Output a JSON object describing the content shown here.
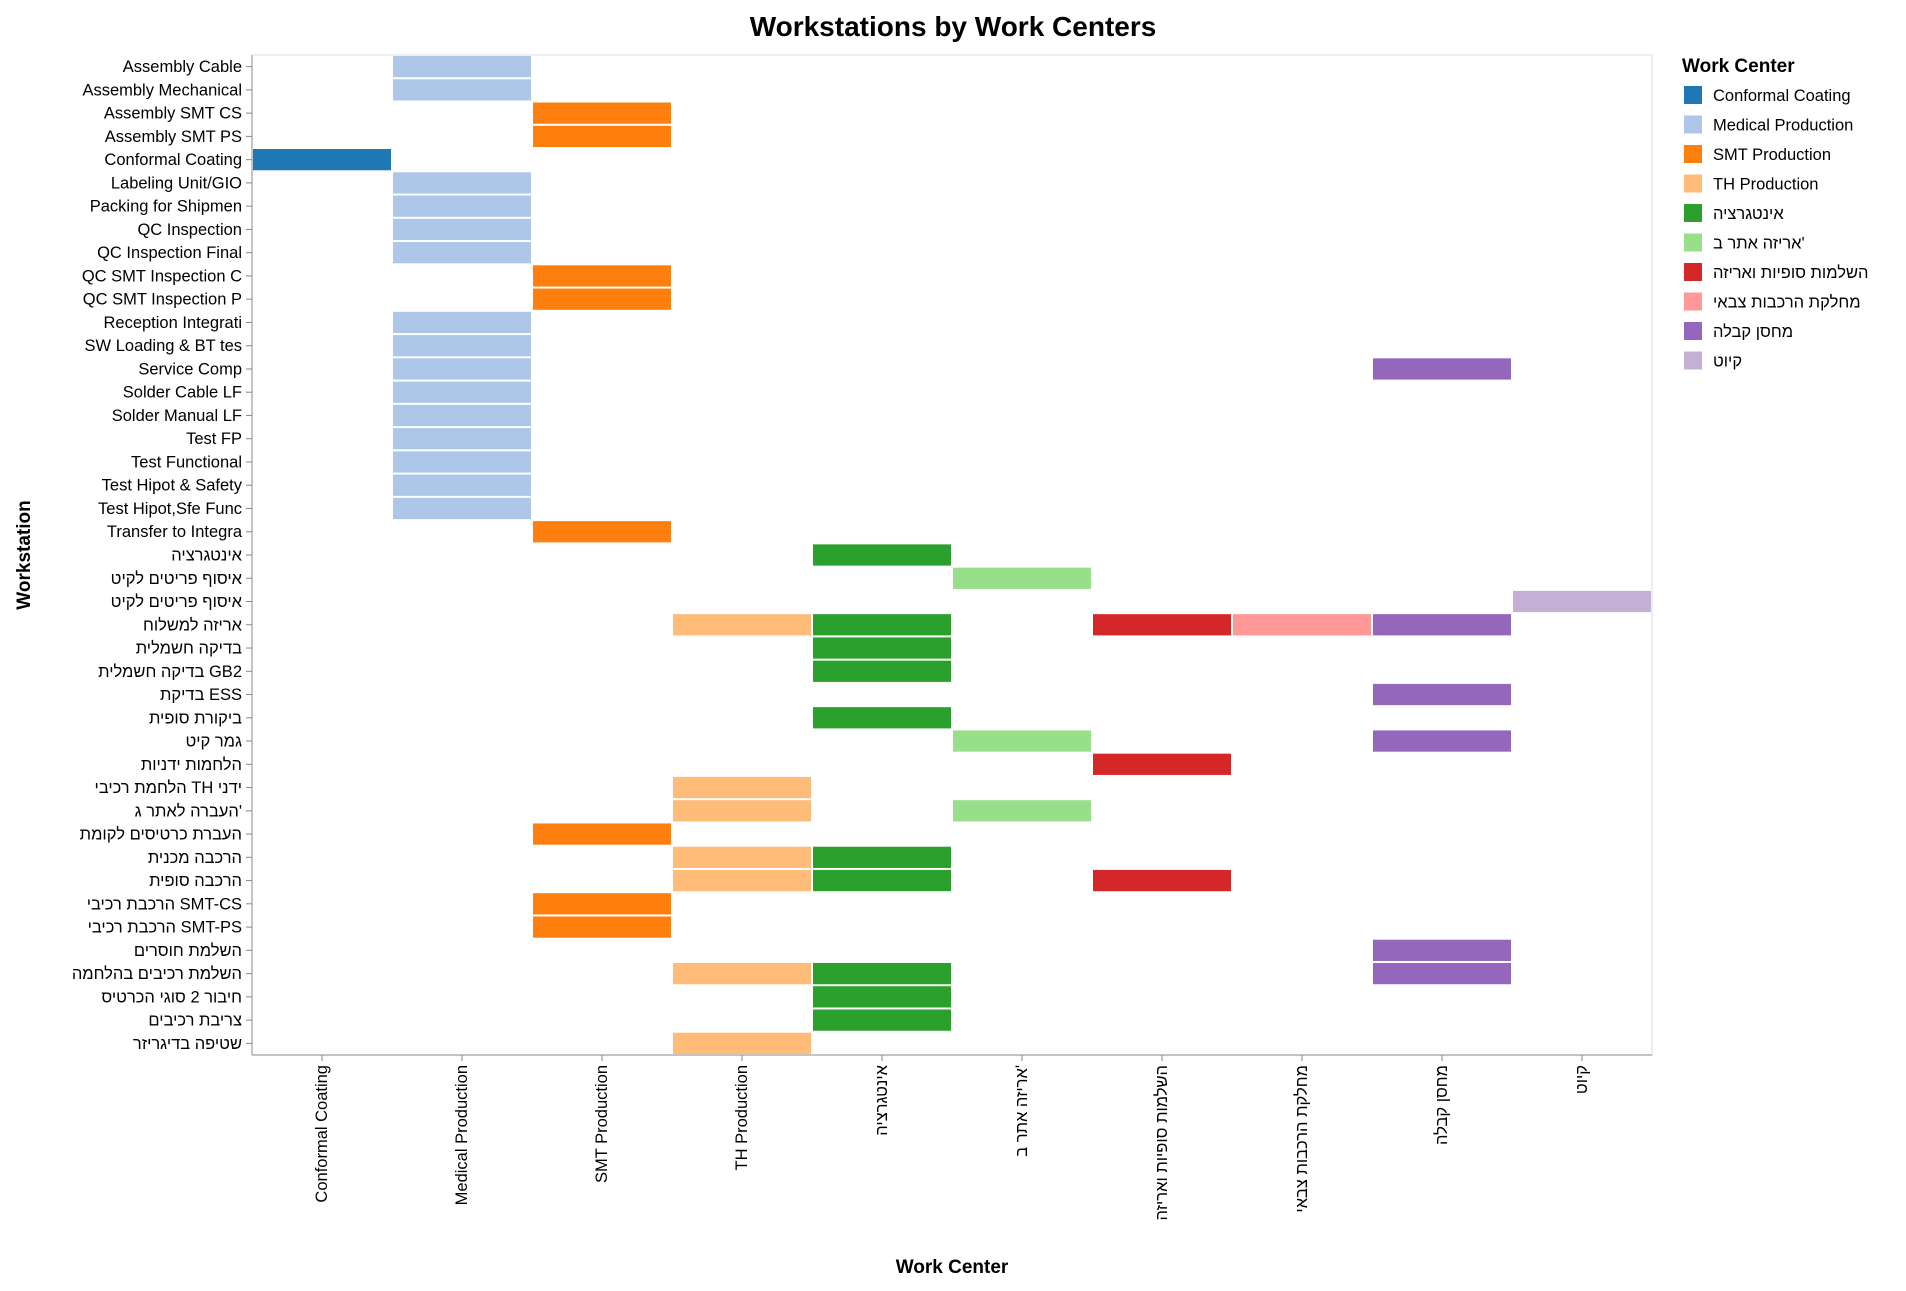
{
  "chart_data": {
    "type": "heatmap",
    "title": "Workstations by Work Centers",
    "xlabel": "Work Center",
    "ylabel": "Workstation",
    "grid": false,
    "legend_position": "right",
    "legend": {
      "title": "Work Center",
      "entries": [
        {
          "name": "Conformal Coating",
          "color": "#1f77b4"
        },
        {
          "name": "Medical Production",
          "color": "#aec7e8"
        },
        {
          "name": "SMT Production",
          "color": "#ff7f0e"
        },
        {
          "name": "TH Production",
          "color": "#ffbb78"
        },
        {
          "name": "אינטגרציה",
          "color": "#2ca02c"
        },
        {
          "name": "אריזה אתר ב'",
          "color": "#98df8a"
        },
        {
          "name": "השלמות סופיות ואריזה",
          "color": "#d62728"
        },
        {
          "name": "מחלקת הרכבות צבאי",
          "color": "#ff9896"
        },
        {
          "name": "מחסן קבלה",
          "color": "#9467bd"
        },
        {
          "name": "קיוט",
          "color": "#c5b0d5"
        }
      ]
    },
    "x_categories": [
      "Conformal Coating",
      "Medical Production",
      "SMT Production",
      "TH Production",
      "אינטגרציה",
      "אריזה אתר ב'",
      "השלמות סופיות ואריזה",
      "מחלקת הרכבות צבאי",
      "מחסן קבלה",
      "קיוט"
    ],
    "y_categories": [
      "Assembly Cable",
      "Assembly Mechanical",
      "Assembly SMT CS",
      "Assembly SMT PS",
      "Conformal Coating",
      "Labeling Unit/GIO",
      "Packing for Shipmen",
      "QC Inspection",
      "QC Inspection Final",
      "QC SMT Inspection C",
      "QC SMT Inspection P",
      "Reception Integrati",
      "SW Loading & BT tes",
      "Service Comp",
      "Solder Cable LF",
      "Solder Manual LF",
      "Test FP",
      "Test Functional",
      "Test Hipot & Safety",
      "Test Hipot,Sfe Func",
      "Transfer to Integra",
      "אינטגרציה",
      "איסוף פריטים לקיט",
      "איסוף פריטים לקיט ",
      "אריזה למשלוח",
      "בדיקה חשמלית",
      "בדיקה חשמלית GB2",
      "בדיקת ESS",
      "ביקורת סופית",
      "גמר קיט",
      "הלחמות ידניות",
      "הלחמת רכיבי TH ידני",
      "העברה לאתר ג'",
      "העברת כרטיסים לקומת",
      "הרכבה מכנית",
      "הרכבה סופית",
      "הרכבת רכיבי SMT-CS",
      "הרכבת רכיבי SMT-PS",
      "השלמת חוסרים",
      "השלמת רכיבים בהלחמה",
      "חיבור 2 סוגי הכרטיס",
      "צריבת רכיבים",
      "שטיפה בדיגריזר"
    ],
    "cells": [
      {
        "y": 0,
        "x": 1
      },
      {
        "y": 1,
        "x": 1
      },
      {
        "y": 2,
        "x": 2
      },
      {
        "y": 3,
        "x": 2
      },
      {
        "y": 4,
        "x": 0
      },
      {
        "y": 5,
        "x": 1
      },
      {
        "y": 6,
        "x": 1
      },
      {
        "y": 7,
        "x": 1
      },
      {
        "y": 8,
        "x": 1
      },
      {
        "y": 9,
        "x": 2
      },
      {
        "y": 10,
        "x": 2
      },
      {
        "y": 11,
        "x": 1
      },
      {
        "y": 12,
        "x": 1
      },
      {
        "y": 13,
        "x": 1
      },
      {
        "y": 13,
        "x": 8
      },
      {
        "y": 14,
        "x": 1
      },
      {
        "y": 15,
        "x": 1
      },
      {
        "y": 16,
        "x": 1
      },
      {
        "y": 17,
        "x": 1
      },
      {
        "y": 18,
        "x": 1
      },
      {
        "y": 19,
        "x": 1
      },
      {
        "y": 20,
        "x": 2
      },
      {
        "y": 21,
        "x": 4
      },
      {
        "y": 22,
        "x": 5
      },
      {
        "y": 23,
        "x": 9
      },
      {
        "y": 24,
        "x": 3
      },
      {
        "y": 24,
        "x": 4
      },
      {
        "y": 24,
        "x": 6
      },
      {
        "y": 24,
        "x": 7
      },
      {
        "y": 24,
        "x": 8
      },
      {
        "y": 25,
        "x": 4
      },
      {
        "y": 26,
        "x": 4
      },
      {
        "y": 27,
        "x": 8
      },
      {
        "y": 28,
        "x": 4
      },
      {
        "y": 29,
        "x": 5
      },
      {
        "y": 29,
        "x": 8
      },
      {
        "y": 30,
        "x": 6
      },
      {
        "y": 31,
        "x": 3
      },
      {
        "y": 32,
        "x": 3
      },
      {
        "y": 32,
        "x": 5
      },
      {
        "y": 33,
        "x": 2
      },
      {
        "y": 34,
        "x": 3
      },
      {
        "y": 34,
        "x": 4
      },
      {
        "y": 35,
        "x": 3
      },
      {
        "y": 35,
        "x": 4
      },
      {
        "y": 35,
        "x": 6
      },
      {
        "y": 36,
        "x": 2
      },
      {
        "y": 37,
        "x": 2
      },
      {
        "y": 38,
        "x": 8
      },
      {
        "y": 39,
        "x": 3
      },
      {
        "y": 39,
        "x": 4
      },
      {
        "y": 39,
        "x": 8
      },
      {
        "y": 40,
        "x": 4
      },
      {
        "y": 41,
        "x": 4
      },
      {
        "y": 42,
        "x": 3
      }
    ]
  }
}
